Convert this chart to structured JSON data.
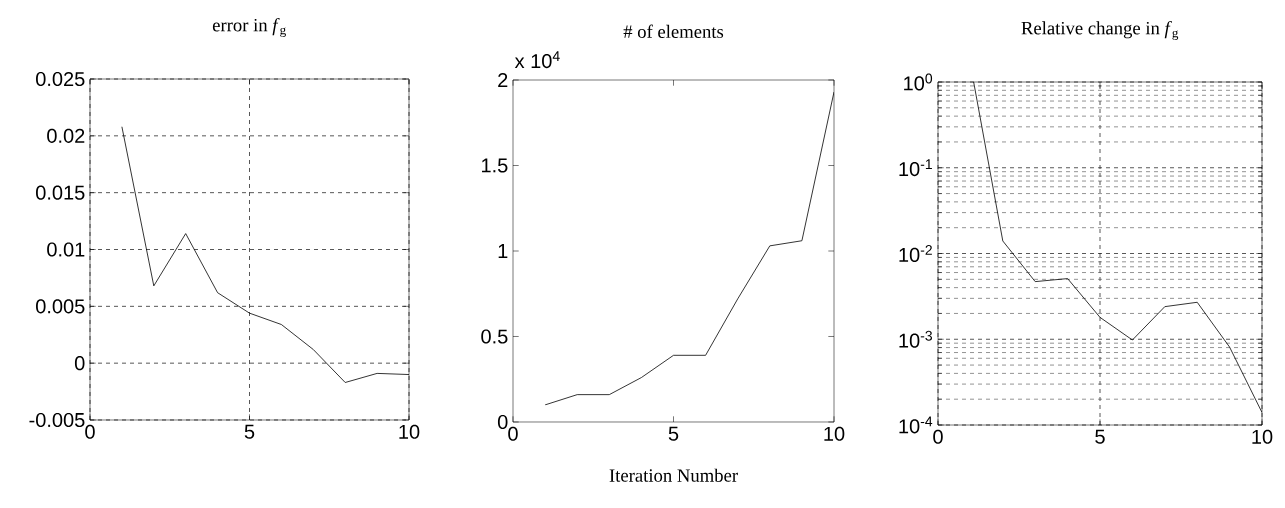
{
  "chart_data": [
    {
      "type": "line",
      "title": "error in *f*$_{g}$",
      "x": [
        1,
        2,
        3,
        4,
        5,
        6,
        7,
        8,
        9,
        10
      ],
      "series": [
        {
          "color": "#000000",
          "values": [
            0.0208,
            0.0068,
            0.0114,
            0.0062,
            0.0044,
            0.0034,
            0.0012,
            -0.0017,
            -0.0009,
            -0.001
          ]
        }
      ],
      "xlim": [
        0,
        10
      ],
      "xticks": [
        0,
        5,
        10
      ],
      "ylim": [
        -0.005,
        0.025
      ],
      "yticks": [
        -0.005,
        0,
        0.005,
        0.01,
        0.015,
        0.02,
        0.025
      ],
      "grid": true
    },
    {
      "type": "line",
      "title": "# of elements",
      "xlabel": "Iteration Number",
      "annotations": [
        "x 10$^{4}$"
      ],
      "x": [
        1,
        2,
        3,
        4,
        5,
        6,
        7,
        8,
        9,
        10
      ],
      "series": [
        {
          "color": "#000000",
          "values": [
            0.1,
            0.16,
            0.16,
            0.26,
            0.39,
            0.39,
            0.72,
            1.03,
            1.06,
            1.93
          ]
        }
      ],
      "xlim": [
        0,
        10
      ],
      "xticks": [
        0,
        5,
        10
      ],
      "ylim": [
        0,
        2
      ],
      "yticks": [
        0,
        0.5,
        1,
        1.5,
        2
      ]
    },
    {
      "type": "line",
      "title": "Relative change in *f*$_{g}$",
      "log": "y",
      "series": [
        {
          "color": "#000000",
          "x": [
            1.1,
            2,
            3,
            4,
            5,
            6,
            7,
            8,
            9,
            10
          ],
          "values": [
            1,
            0.014,
            0.0047,
            0.0051,
            0.0018,
            0.00098,
            0.0024,
            0.0027,
            0.00081,
            0.00014
          ]
        }
      ],
      "xlim": [
        0,
        10
      ],
      "xticks": [
        0,
        5,
        10
      ],
      "ylim": [
        0.0001,
        1
      ],
      "yticks": [
        {
          "value": 0.0001,
          "label": "10$^{-4}$"
        },
        {
          "value": 0.001,
          "label": "10$^{-3}$"
        },
        {
          "value": 0.01,
          "label": "10$^{-2}$"
        },
        {
          "value": 0.1,
          "label": "10$^{-1}$"
        },
        {
          "value": 1,
          "label": "10$^{0}$"
        }
      ],
      "grid": true
    }
  ]
}
